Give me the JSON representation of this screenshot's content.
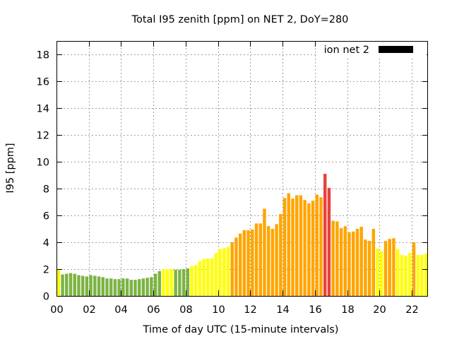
{
  "chart_data": {
    "type": "bar",
    "title": "Total I95 zenith [ppm] on NET 2, DoY=280",
    "xlabel": "Time of day UTC (15-minute intervals)",
    "ylabel": "I95 [ppm]",
    "xlim": [
      0,
      23
    ],
    "ylim": [
      0,
      19
    ],
    "x_ticks": [
      0,
      2,
      4,
      6,
      8,
      10,
      12,
      14,
      16,
      18,
      20,
      22
    ],
    "x_tick_labels": [
      "00",
      "02",
      "04",
      "06",
      "08",
      "10",
      "12",
      "14",
      "16",
      "18",
      "20",
      "22"
    ],
    "y_ticks": [
      0,
      2,
      4,
      6,
      8,
      10,
      12,
      14,
      16,
      18
    ],
    "y_tick_labels": [
      "0",
      "2",
      "4",
      "6",
      "8",
      "10",
      "12",
      "14",
      "16",
      "18"
    ],
    "grid": true,
    "legend": {
      "position": "top-right",
      "label": "ion net 2",
      "color": "#000000"
    },
    "interval_hours": 0.25,
    "values": [
      2.0,
      1.6,
      1.65,
      1.7,
      1.65,
      1.55,
      1.5,
      1.45,
      1.55,
      1.5,
      1.45,
      1.4,
      1.3,
      1.3,
      1.25,
      1.25,
      1.3,
      1.3,
      1.2,
      1.2,
      1.25,
      1.3,
      1.35,
      1.4,
      1.65,
      1.85,
      2.0,
      2.0,
      2.0,
      1.95,
      1.95,
      2.0,
      2.05,
      2.2,
      2.3,
      2.6,
      2.75,
      2.8,
      2.8,
      3.2,
      3.5,
      3.55,
      3.65,
      4.0,
      4.35,
      4.65,
      4.9,
      4.9,
      4.95,
      5.4,
      5.4,
      6.5,
      5.2,
      5.0,
      5.35,
      6.1,
      7.3,
      7.65,
      7.25,
      7.5,
      7.5,
      7.15,
      6.9,
      7.1,
      7.55,
      7.35,
      9.1,
      8.05,
      5.6,
      5.55,
      5.05,
      5.2,
      4.75,
      4.8,
      5.0,
      5.15,
      4.2,
      4.1,
      5.0,
      3.55,
      3.35,
      4.1,
      4.25,
      4.3,
      3.5,
      3.05,
      3.0,
      3.2,
      4.0,
      3.05,
      3.05,
      3.15
    ],
    "level_colors": {
      "green": "#7cb443",
      "yellow": "#ffff00",
      "orange": "#ffa500",
      "red": "#e8413c"
    },
    "levels": [
      "yellow",
      "green",
      "green",
      "green",
      "green",
      "green",
      "green",
      "green",
      "green",
      "green",
      "green",
      "green",
      "green",
      "green",
      "green",
      "green",
      "green",
      "green",
      "green",
      "green",
      "green",
      "green",
      "green",
      "green",
      "green",
      "green",
      "yellow",
      "yellow",
      "yellow",
      "green",
      "green",
      "green",
      "green",
      "yellow",
      "yellow",
      "yellow",
      "yellow",
      "yellow",
      "yellow",
      "yellow",
      "yellow",
      "yellow",
      "yellow",
      "orange",
      "orange",
      "orange",
      "orange",
      "orange",
      "orange",
      "orange",
      "orange",
      "orange",
      "orange",
      "orange",
      "orange",
      "orange",
      "orange",
      "orange",
      "orange",
      "orange",
      "orange",
      "orange",
      "orange",
      "orange",
      "orange",
      "orange",
      "red",
      "red",
      "orange",
      "orange",
      "orange",
      "orange",
      "orange",
      "orange",
      "orange",
      "orange",
      "orange",
      "orange",
      "orange",
      "yellow",
      "yellow",
      "orange",
      "orange",
      "orange",
      "yellow",
      "yellow",
      "yellow",
      "yellow",
      "orange",
      "yellow",
      "yellow",
      "yellow"
    ]
  }
}
